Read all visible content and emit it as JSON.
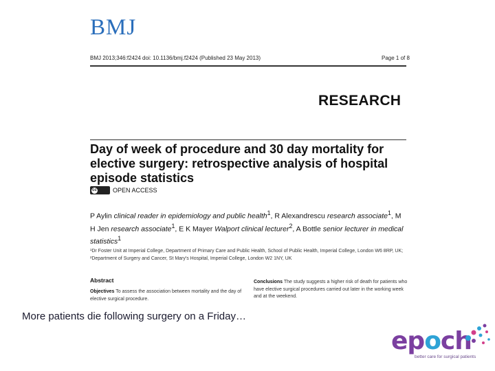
{
  "header": {
    "logo_text": "BMJ",
    "citation": "BMJ 2013;346:f2424 doi: 10.1136/bmj.f2424 (Published 23 May 2013)",
    "page": "Page 1 of 8",
    "section": "RESEARCH"
  },
  "article": {
    "title": "Day of week of procedure and 30 day mortality for elective surgery: retrospective analysis of hospital episode statistics",
    "open_access_badge": "cc",
    "open_access": "OPEN ACCESS",
    "authors": {
      "a1_name": "P Aylin",
      "a1_role": "clinical reader in epidemiology and public health",
      "a1_sup": "1",
      "a2_name": "R Alexandrescu",
      "a2_role": "research associate",
      "a2_sup": "1",
      "a3_name": "M H Jen",
      "a3_role": "research associate",
      "a3_sup": "1",
      "a4_name": "E K Mayer",
      "a4_role": "Walport clinical lecturer",
      "a4_sup": "2",
      "a5_name": "A Bottle",
      "a5_role": "senior lecturer in medical statistics",
      "a5_sup": "1"
    },
    "affiliations": "¹Dr Foster Unit at Imperial College, Department of Primary Care and Public Health, School of Public Health, Imperial College, London W6 8RP, UK; ²Department of Surgery and Cancer, St Mary's Hospital, Imperial College, London W2 1NY, UK",
    "abstract_heading": "Abstract",
    "objectives_label": "Objectives",
    "objectives_text": "To assess the association between mortality and the day of elective surgical procedure.",
    "conclusions_label": "Conclusions",
    "conclusions_text": "The study suggests a higher risk of death for patients who have elective surgical procedures carried out later in the working week and at the weekend."
  },
  "caption": "More patients die following surgery on a Friday…",
  "epoch_logo": {
    "word_pre": "ep",
    "word_o": "o",
    "word_post": "ch",
    "tagline": "better care for surgical patients",
    "colors": {
      "purple": "#7b3fa0",
      "blue": "#2ea3d6",
      "pink": "#d23f8a"
    }
  }
}
